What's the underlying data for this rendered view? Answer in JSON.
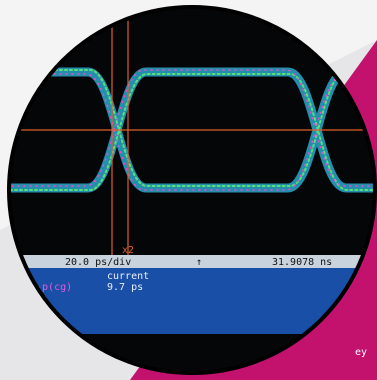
{
  "marker": "x2",
  "status_bar": {
    "timebase": "20.0 ps/div",
    "arrow": "↑",
    "time": "31.9078 ns"
  },
  "measurement": {
    "heading": "current",
    "label": "p-p(cg)",
    "value": "9.7 ps"
  },
  "caption": "ey"
}
